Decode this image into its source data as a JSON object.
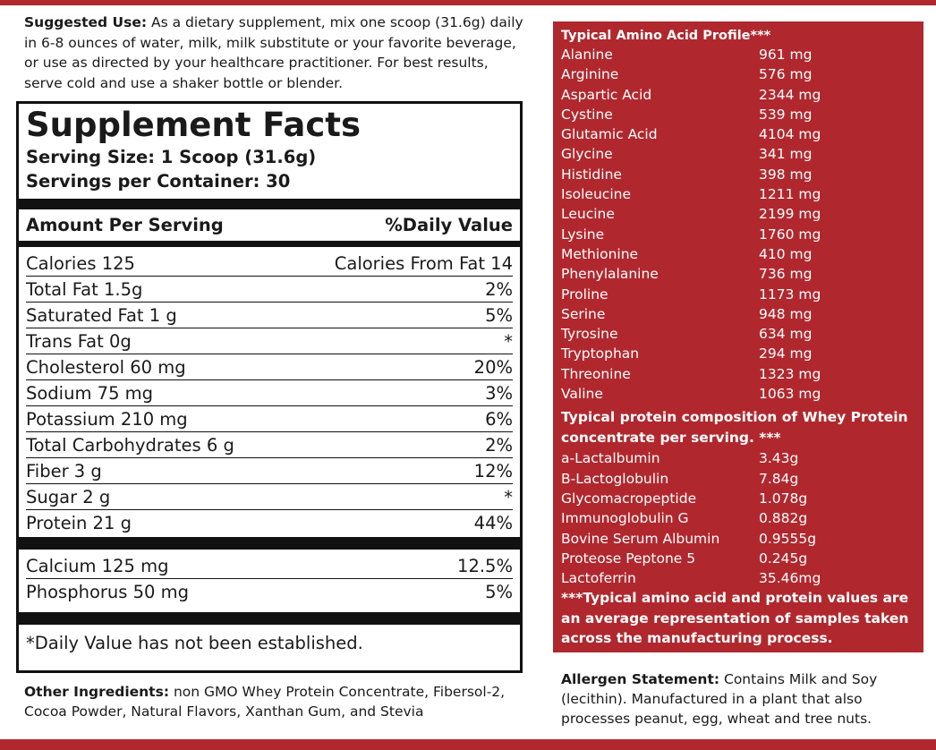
{
  "suggested_use": {
    "label": "Suggested Use:",
    "text": " As a dietary supplement, mix one scoop (31.6g) daily in 6-8 ounces of water, milk, milk substitute or your favorite beverage, or use as directed by your healthcare practitioner. For best results, serve cold and use a shaker bottle or blender."
  },
  "facts": {
    "title": "Supplement Facts",
    "serving_size": "Serving Size: 1 Scoop (31.6g)",
    "servings_per_container": "Servings per Container: 30",
    "header_left": "Amount Per Serving",
    "header_right": "%Daily Value",
    "rows": [
      {
        "name": "Calories 125",
        "value": "Calories From Fat 14"
      },
      {
        "name": "Total Fat 1.5g",
        "value": "2%"
      },
      {
        "name": "Saturated Fat 1 g",
        "value": "5%"
      },
      {
        "name": "Trans Fat  0g",
        "value": "*"
      },
      {
        "name": "Cholesterol 60 mg",
        "value": "20%"
      },
      {
        "name": "Sodium 75 mg",
        "value": "3%"
      },
      {
        "name": "Potassium 210 mg",
        "value": "6%"
      },
      {
        "name": "Total Carbohydrates 6 g",
        "value": "2%"
      },
      {
        "name": "Fiber 3 g",
        "value": "12%"
      },
      {
        "name": "Sugar 2 g",
        "value": "*"
      },
      {
        "name": "Protein 21 g",
        "value": "44%"
      }
    ],
    "minerals": [
      {
        "name": "Calcium 125 mg",
        "value": "12.5%"
      },
      {
        "name": "Phosphorus 50 mg",
        "value": "5%"
      }
    ],
    "note": "*Daily Value has not been established."
  },
  "other_ingredients": {
    "label": "Other Ingredients:",
    "text": " non GMO Whey Protein Concentrate, Fibersol-2, Cocoa Powder, Natural Flavors, Xanthan Gum, and Stevia"
  },
  "amino": {
    "title": "Typical Amino Acid Profile***",
    "rows": [
      {
        "name": "Alanine",
        "value": "961 mg"
      },
      {
        "name": "Arginine",
        "value": "576 mg"
      },
      {
        "name": "Aspartic Acid",
        "value": "2344 mg"
      },
      {
        "name": "Cystine",
        "value": "539 mg"
      },
      {
        "name": "Glutamic Acid",
        "value": "4104 mg"
      },
      {
        "name": "Glycine",
        "value": "341 mg"
      },
      {
        "name": "Histidine",
        "value": "398 mg"
      },
      {
        "name": "Isoleucine",
        "value": "1211 mg"
      },
      {
        "name": "Leucine",
        "value": "2199 mg"
      },
      {
        "name": "Lysine",
        "value": "1760 mg"
      },
      {
        "name": "Methionine",
        "value": "410 mg"
      },
      {
        "name": "Phenylalanine",
        "value": "736 mg"
      },
      {
        "name": "Proline",
        "value": "1173 mg"
      },
      {
        "name": "Serine",
        "value": "948 mg"
      },
      {
        "name": "Tyrosine",
        "value": "634 mg"
      },
      {
        "name": "Tryptophan",
        "value": "294 mg"
      },
      {
        "name": "Threonine",
        "value": "1323 mg"
      },
      {
        "name": "Valine",
        "value": "1063 mg"
      }
    ]
  },
  "protein": {
    "title": "Typical protein composition of Whey Protein concentrate per serving. ***",
    "rows": [
      {
        "name": "a-Lactalbumin",
        "value": "3.43g"
      },
      {
        "name": "B-Lactoglobulin",
        "value": "7.84g"
      },
      {
        "name": "Glycomacropeptide",
        "value": "1.078g"
      },
      {
        "name": "Immunoglobulin G",
        "value": "0.882g"
      },
      {
        "name": "Bovine Serum Albumin",
        "value": "0.9555g"
      },
      {
        "name": "Proteose Peptone 5",
        "value": "0.245g"
      },
      {
        "name": "Lactoferrin",
        "value": "35.46mg"
      }
    ],
    "footnote": "***Typical amino acid and protein values are an average representation of samples taken across the manufacturing process."
  },
  "allergen": {
    "label": "Allergen Statement:",
    "text": " Contains Milk and Soy (lecithin). Manufactured in a plant that also processes peanut, egg, wheat and tree nuts."
  },
  "colors": {
    "accent_red": "#b0282e",
    "text": "#1a1a1a"
  }
}
